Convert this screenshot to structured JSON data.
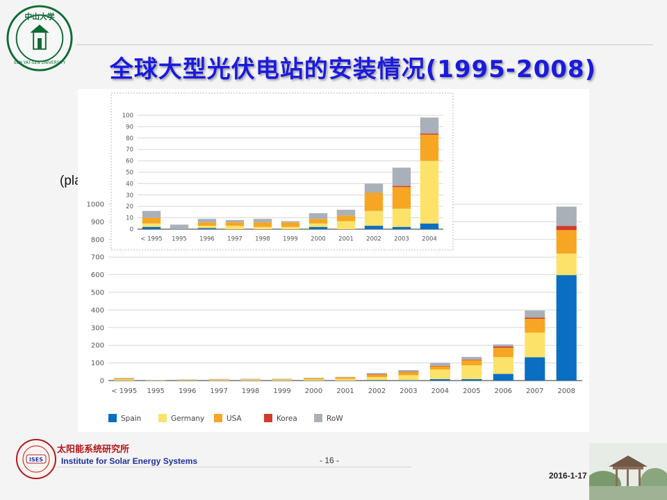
{
  "slide": {
    "title": "全球大型光伏电站的安装情况(1995-2008)",
    "y_unit_label": "(plants)"
  },
  "footer": {
    "institute_cn": "太阳能系统研究所",
    "institute_en": "Institute for Solar Energy Systems",
    "page": "- 16 -",
    "date": "2016-1-17"
  },
  "icons": {
    "university_logo": "sun-yat-sen-university-seal-icon",
    "ises_logo": "ises-logo-icon",
    "scenery": "pavilion-scenery-icon"
  },
  "chart_data": [
    {
      "type": "bar",
      "stacked": true,
      "categories": [
        "< 1995",
        "1995",
        "1996",
        "1997",
        "1998",
        "1999",
        "2000",
        "2001",
        "2002",
        "2003",
        "2004",
        "2005",
        "2006",
        "2007",
        "2008"
      ],
      "series": [
        {
          "name": "Spain",
          "color": "#0a6fc2",
          "values": [
            0,
            0,
            0,
            0,
            0,
            0,
            0,
            0,
            3,
            2,
            8,
            8,
            38,
            132,
            598
          ]
        },
        {
          "name": "Germany",
          "color": "#fde269",
          "values": [
            6,
            2,
            3,
            4,
            5,
            5,
            6,
            9,
            16,
            28,
            55,
            78,
            95,
            140,
            122
          ]
        },
        {
          "name": "USA",
          "color": "#f6a623",
          "values": [
            5,
            0,
            1,
            3,
            3,
            3,
            7,
            9,
            16,
            19,
            18,
            30,
            53,
            78,
            133
          ]
        },
        {
          "name": "Korea",
          "color": "#d23a28",
          "values": [
            0,
            0,
            0,
            0,
            0,
            0,
            0,
            0,
            1,
            1,
            2,
            2,
            7,
            7,
            23
          ]
        },
        {
          "name": "RoW",
          "color": "#a9b0b8",
          "values": [
            4,
            2,
            2,
            2,
            2,
            2,
            3,
            3,
            7,
            9,
            17,
            16,
            12,
            40,
            110
          ]
        }
      ],
      "ylim": [
        0,
        1000
      ],
      "yticks": [
        0,
        100,
        200,
        300,
        400,
        500,
        600,
        700,
        800,
        900,
        1000
      ],
      "legend_position": "bottom-left",
      "grid": "horizontal"
    },
    {
      "type": "bar",
      "stacked": true,
      "categories": [
        "< 1995",
        "1995",
        "1996",
        "1997",
        "1998",
        "1999",
        "2000",
        "2001",
        "2002",
        "2003",
        "2004"
      ],
      "series": [
        {
          "name": "Spain",
          "values": [
            2,
            0,
            1,
            0,
            0,
            0,
            2,
            0,
            3,
            2,
            5
          ]
        },
        {
          "name": "Germany",
          "values": [
            3,
            0,
            2,
            3,
            2,
            2,
            3,
            7,
            13,
            16,
            55
          ]
        },
        {
          "name": "USA",
          "values": [
            5,
            0,
            3,
            3,
            4,
            4,
            4,
            5,
            16,
            19,
            23
          ]
        },
        {
          "name": "Korea",
          "values": [
            0,
            0,
            0,
            0,
            0,
            0,
            0,
            0,
            0,
            1,
            1
          ]
        },
        {
          "name": "RoW",
          "values": [
            6,
            4,
            3,
            2,
            3,
            1,
            5,
            5,
            8,
            16,
            14
          ]
        }
      ],
      "ylim": [
        0,
        100
      ],
      "yticks": [
        0,
        10,
        20,
        30,
        40,
        50,
        60,
        70,
        80,
        90,
        100
      ],
      "legend_position": "none",
      "grid": "horizontal"
    }
  ]
}
